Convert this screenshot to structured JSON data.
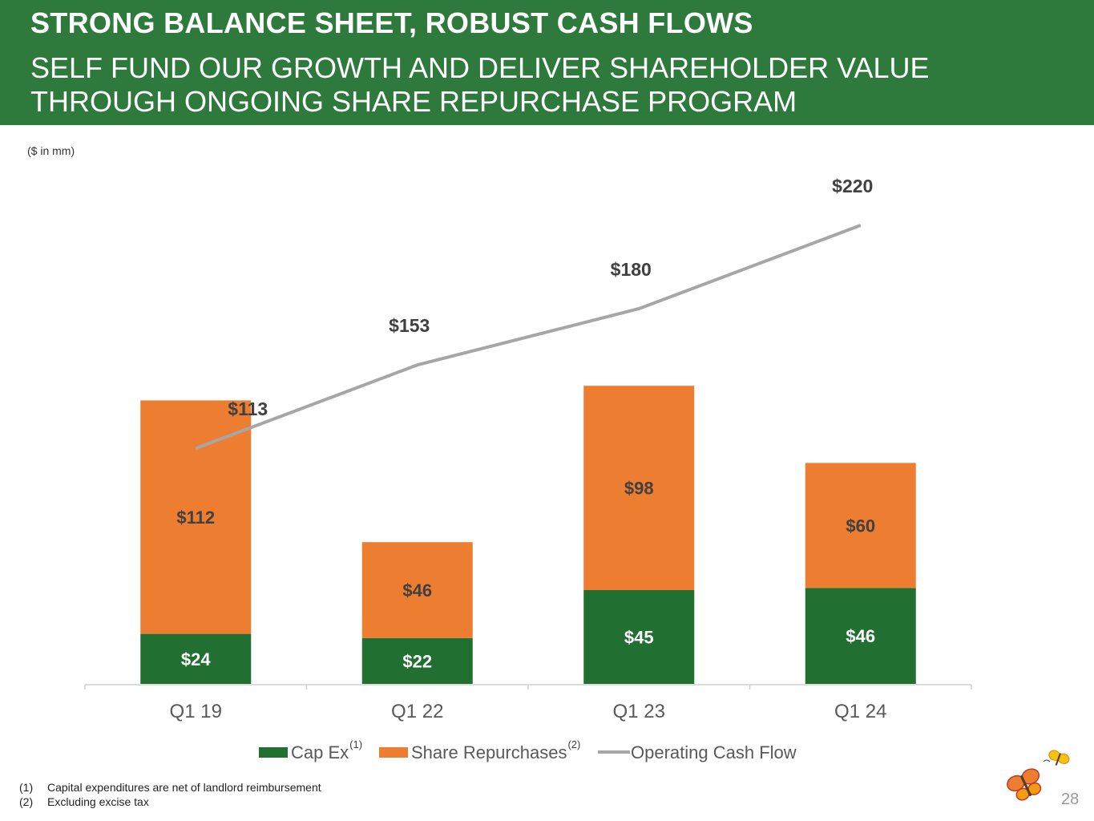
{
  "header": {
    "title": "STRONG BALANCE SHEET, ROBUST CASH FLOWS",
    "subtitle_line1": "SELF FUND OUR GROWTH AND DELIVER SHAREHOLDER VALUE",
    "subtitle_line2": "THROUGH ONGOING SHARE REPURCHASE PROGRAM"
  },
  "units_note": "($ in mm)",
  "colors": {
    "header_bg": "#2e7a3d",
    "cap_ex": "#216f31",
    "share_repurchases": "#ed7d31",
    "operating_cash_flow": "#a6a6a6"
  },
  "chart_data": {
    "type": "bar",
    "stacked": true,
    "categories": [
      "Q1 19",
      "Q1 22",
      "Q1 23",
      "Q1 24"
    ],
    "series": [
      {
        "name": "Cap Ex",
        "superscript": "(1)",
        "kind": "bar",
        "values": [
          24,
          22,
          45,
          46
        ],
        "labels": [
          "$24",
          "$22",
          "$45",
          "$46"
        ]
      },
      {
        "name": "Share Repurchases",
        "superscript": "(2)",
        "kind": "bar",
        "values": [
          112,
          46,
          98,
          60
        ],
        "labels": [
          "$112",
          "$46",
          "$98",
          "$60"
        ]
      },
      {
        "name": "Operating Cash Flow",
        "superscript": "",
        "kind": "line",
        "values": [
          113,
          153,
          180,
          220
        ],
        "labels": [
          "$113",
          "$153",
          "$180",
          "$220"
        ]
      }
    ],
    "ylim": [
      0,
      240
    ],
    "grid": false,
    "legend_position": "bottom"
  },
  "footnotes": [
    {
      "num": "(1)",
      "text": "Capital expenditures are net of landlord reimbursement"
    },
    {
      "num": "(2)",
      "text": "Excluding excise tax"
    }
  ],
  "page_number": "28"
}
